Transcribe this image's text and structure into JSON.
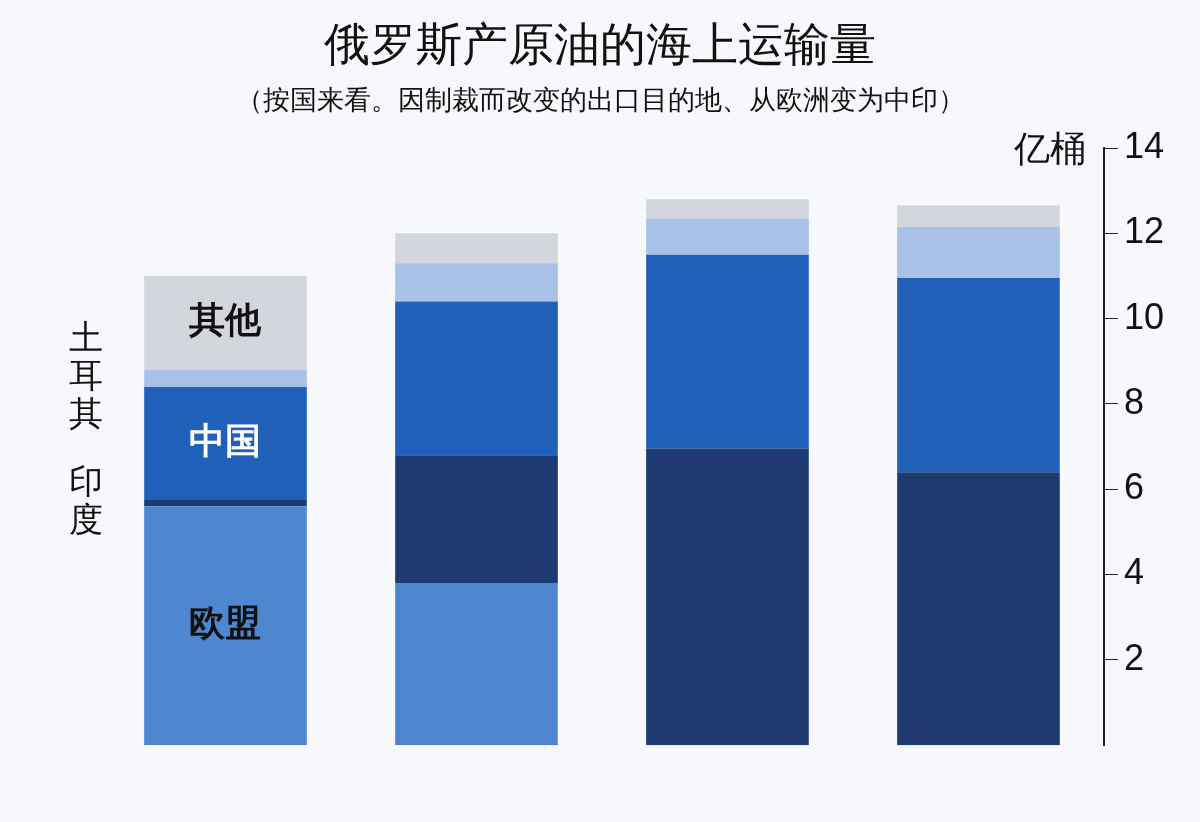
{
  "chart_data": {
    "type": "bar",
    "title": "俄罗斯产原油的海上运输量",
    "subtitle": "（按国来看。因制裁而改变的出口目的地、从欧洲变为中印）",
    "ylabel": "亿桶",
    "categories": [
      null,
      null,
      null,
      null
    ],
    "stacked": true,
    "grid": false,
    "legend": false,
    "ylim": [
      0,
      14
    ],
    "yticks": [
      2,
      4,
      6,
      8,
      10,
      12,
      14
    ],
    "series": [
      {
        "name": "欧盟",
        "color": "#4f86d0",
        "values": [
          5.6,
          3.8,
          null,
          null
        ]
      },
      {
        "name": "印度",
        "color": "#1e3a70",
        "values": [
          0.15,
          3.0,
          6.95,
          6.4
        ]
      },
      {
        "name": "中国",
        "color": "#2160b8",
        "values": [
          2.65,
          3.6,
          4.55,
          4.55
        ]
      },
      {
        "name": "土耳其",
        "color": "#a9c1e6",
        "values": [
          0.4,
          0.9,
          0.85,
          1.2
        ]
      },
      {
        "name": "其他",
        "color": "#d3d6dc",
        "values": [
          2.2,
          0.7,
          0.45,
          0.5
        ]
      }
    ]
  }
}
